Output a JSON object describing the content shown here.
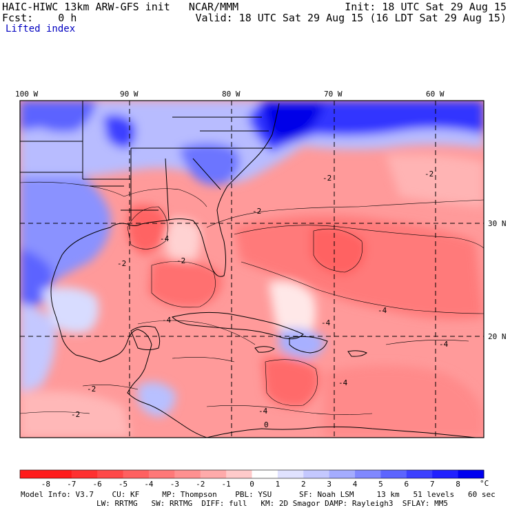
{
  "header": {
    "model_title": "HAIC-HIWC 13km ARW-GFS init   NCAR/MMM",
    "forecast": "Fcst:    0 h",
    "init": "Init: 18 UTC Sat 29 Aug 15",
    "valid": "Valid: 18 UTC Sat 29 Aug 15 (16 LDT Sat 29 Aug 15)",
    "field_name": "Lifted index"
  },
  "map": {
    "lon_labels": [
      "100 W",
      "90 W",
      "80 W",
      "70 W",
      "60 W"
    ],
    "lat_labels": [
      "30 N",
      "20 N"
    ],
    "contour_labels": [
      "-2",
      "-4",
      "0"
    ]
  },
  "colorbar": {
    "values": [
      "-8",
      "-7",
      "-6",
      "-5",
      "-4",
      "-3",
      "-2",
      "-1",
      "0",
      "1",
      "2",
      "3",
      "4",
      "5",
      "6",
      "7",
      "8"
    ],
    "unit": "°C",
    "colors": [
      "#ff1a1a",
      "#ff3030",
      "#ff4848",
      "#ff6060",
      "#ff7878",
      "#ff9090",
      "#ffaaaa",
      "#ffcaca",
      "#ffffff",
      "#e0e2ff",
      "#c4c8ff",
      "#a4acff",
      "#8088ff",
      "#5c64ff",
      "#3c40ff",
      "#2020ff",
      "#0000f0"
    ]
  },
  "footer": {
    "line1": "Model Info: V3.7    CU: KF     MP: Thompson    PBL: YSU      SF: Noah LSM     13 km   51 levels   60 sec",
    "line2": "LW: RRTMG   SW: RRTMG  DIFF: full   KM: 2D Smagor DAMP: Rayleigh3  SFLAY: MM5"
  }
}
